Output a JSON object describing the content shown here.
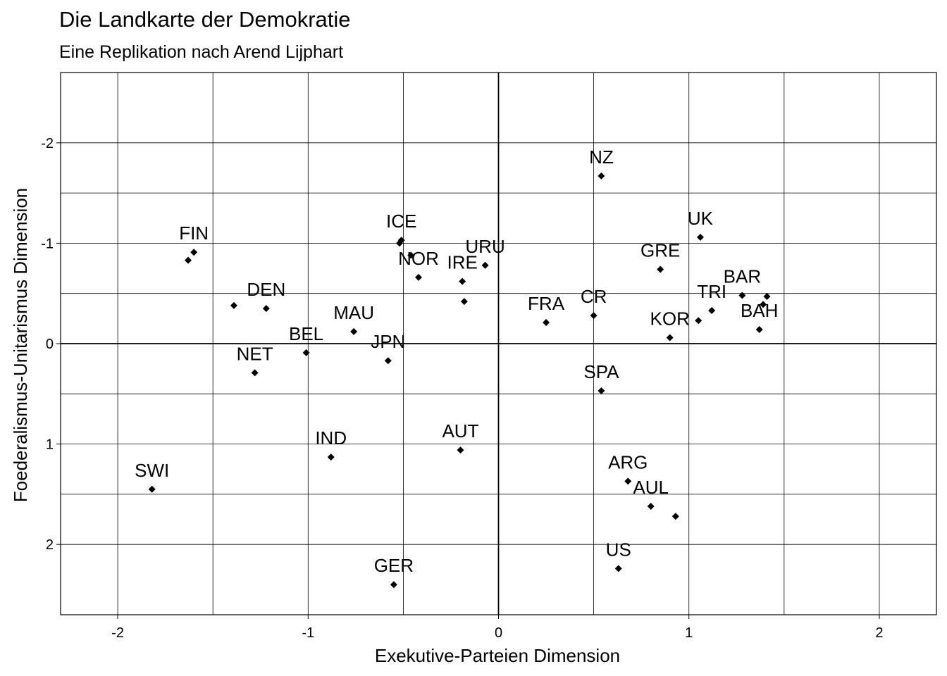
{
  "chart_data": {
    "type": "scatter",
    "title": "Die Landkarte der Demokratie",
    "subtitle": "Eine Replikation nach Arend Lijphart",
    "xlabel": "Exekutive-Parteien Dimension",
    "ylabel": "Foederalismus-Unitarismus Dimension",
    "xlim": [
      -2.3,
      2.3
    ],
    "ylim": [
      -2.7,
      2.7
    ],
    "y_reversed": true,
    "x_ticks": [
      "-2",
      "-1",
      "0",
      "1",
      "2"
    ],
    "x_tick_values": [
      -2,
      -1,
      0,
      1,
      2
    ],
    "y_ticks": [
      "-2",
      "-1",
      "0",
      "1",
      "2"
    ],
    "y_tick_values": [
      -2,
      -1,
      0,
      1,
      2
    ],
    "grid": true,
    "reference_lines": {
      "x": 0,
      "y": 0
    },
    "marker": "diamond",
    "points": [
      {
        "label": "NZ",
        "x": 0.54,
        "y": -1.67
      },
      {
        "label": "UK",
        "x": 1.06,
        "y": -1.06
      },
      {
        "label": "ICE",
        "x": -0.51,
        "y": -1.03
      },
      {
        "label": "",
        "x": -0.52,
        "y": -1.0
      },
      {
        "label": "FIN",
        "x": -1.6,
        "y": -0.91
      },
      {
        "label": "",
        "x": -1.63,
        "y": -0.83
      },
      {
        "label": "",
        "x": -0.46,
        "y": -0.88
      },
      {
        "label": "NOR",
        "x": -0.42,
        "y": -0.66
      },
      {
        "label": "URU",
        "x": -0.07,
        "y": -0.78
      },
      {
        "label": "GRE",
        "x": 0.85,
        "y": -0.74
      },
      {
        "label": "IRE",
        "x": -0.19,
        "y": -0.62
      },
      {
        "label": "",
        "x": -0.18,
        "y": -0.42
      },
      {
        "label": "BAR",
        "x": 1.28,
        "y": -0.48
      },
      {
        "label": "",
        "x": 1.41,
        "y": -0.47
      },
      {
        "label": "BAH",
        "x": 1.37,
        "y": -0.14
      },
      {
        "label": "",
        "x": 1.39,
        "y": -0.39
      },
      {
        "label": "DEN",
        "x": -1.22,
        "y": -0.35
      },
      {
        "label": "",
        "x": -1.39,
        "y": -0.38
      },
      {
        "label": "TRI",
        "x": 1.12,
        "y": -0.33
      },
      {
        "label": "",
        "x": 1.05,
        "y": -0.23
      },
      {
        "label": "CR",
        "x": 0.5,
        "y": -0.28
      },
      {
        "label": "FRA",
        "x": 0.25,
        "y": -0.21
      },
      {
        "label": "KOR",
        "x": 0.9,
        "y": -0.06
      },
      {
        "label": "MAU",
        "x": -0.76,
        "y": -0.12
      },
      {
        "label": "BEL",
        "x": -1.01,
        "y": 0.09
      },
      {
        "label": "JPN",
        "x": -0.58,
        "y": 0.17
      },
      {
        "label": "NET",
        "x": -1.28,
        "y": 0.29
      },
      {
        "label": "SPA",
        "x": 0.54,
        "y": 0.47
      },
      {
        "label": "AUT",
        "x": -0.2,
        "y": 1.06
      },
      {
        "label": "IND",
        "x": -0.88,
        "y": 1.13
      },
      {
        "label": "ARG",
        "x": 0.68,
        "y": 1.37
      },
      {
        "label": "SWI",
        "x": -1.82,
        "y": 1.45
      },
      {
        "label": "AUL",
        "x": 0.8,
        "y": 1.62
      },
      {
        "label": "",
        "x": 0.93,
        "y": 1.72
      },
      {
        "label": "US",
        "x": 0.63,
        "y": 2.24
      },
      {
        "label": "GER",
        "x": -0.55,
        "y": 2.4
      }
    ]
  }
}
